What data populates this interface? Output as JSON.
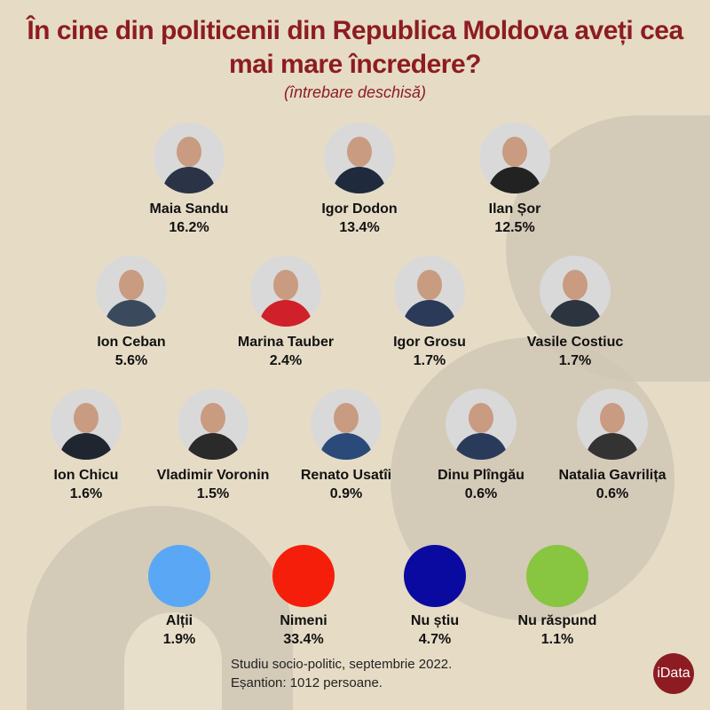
{
  "header": {
    "title": "În cine din politicenii din Republica Moldova aveți cea mai mare încredere?",
    "subtitle": "(întrebare deschisă)"
  },
  "chart_data": {
    "type": "table",
    "title": "În cine din politicenii din Republica Moldova aveți cea mai mare încredere?",
    "subtitle": "(întrebare deschisă)",
    "unit": "%",
    "politicians": [
      {
        "name": "Maia Sandu",
        "value": 16.2,
        "label": "16.2%"
      },
      {
        "name": "Igor Dodon",
        "value": 13.4,
        "label": "13.4%"
      },
      {
        "name": "Ilan Șor",
        "value": 12.5,
        "label": "12.5%"
      },
      {
        "name": "Ion Ceban",
        "value": 5.6,
        "label": "5.6%"
      },
      {
        "name": "Marina Tauber",
        "value": 2.4,
        "label": "2.4%"
      },
      {
        "name": "Igor Grosu",
        "value": 1.7,
        "label": "1.7%"
      },
      {
        "name": "Vasile Costiuc",
        "value": 1.7,
        "label": "1.7%"
      },
      {
        "name": "Ion Chicu",
        "value": 1.6,
        "label": "1.6%"
      },
      {
        "name": "Vladimir Voronin",
        "value": 1.5,
        "label": "1.5%"
      },
      {
        "name": "Renato Usatîi",
        "value": 0.9,
        "label": "0.9%"
      },
      {
        "name": "Dinu Plîngău",
        "value": 0.6,
        "label": "0.6%"
      },
      {
        "name": "Natalia Gavrilița",
        "value": 0.6,
        "label": "0.6%"
      }
    ],
    "other_answers": [
      {
        "name": "Alții",
        "value": 1.9,
        "label": "1.9%",
        "color": "#5aa8f5"
      },
      {
        "name": "Nimeni",
        "value": 33.4,
        "label": "33.4%",
        "color": "#f51e0a"
      },
      {
        "name": "Nu știu",
        "value": 4.7,
        "label": "4.7%",
        "color": "#0a0aa0"
      },
      {
        "name": "Nu răspund",
        "value": 1.1,
        "label": "1.1%",
        "color": "#88c540"
      }
    ]
  },
  "footer": {
    "line1": "Studiu socio-politic, septembrie 2022.",
    "line2": "Eșantion: 1012 persoane."
  },
  "logo": {
    "text": "iData",
    "color": "#8d1c22"
  },
  "colors": {
    "title": "#8d1c22",
    "background": "#e6dcc6"
  }
}
